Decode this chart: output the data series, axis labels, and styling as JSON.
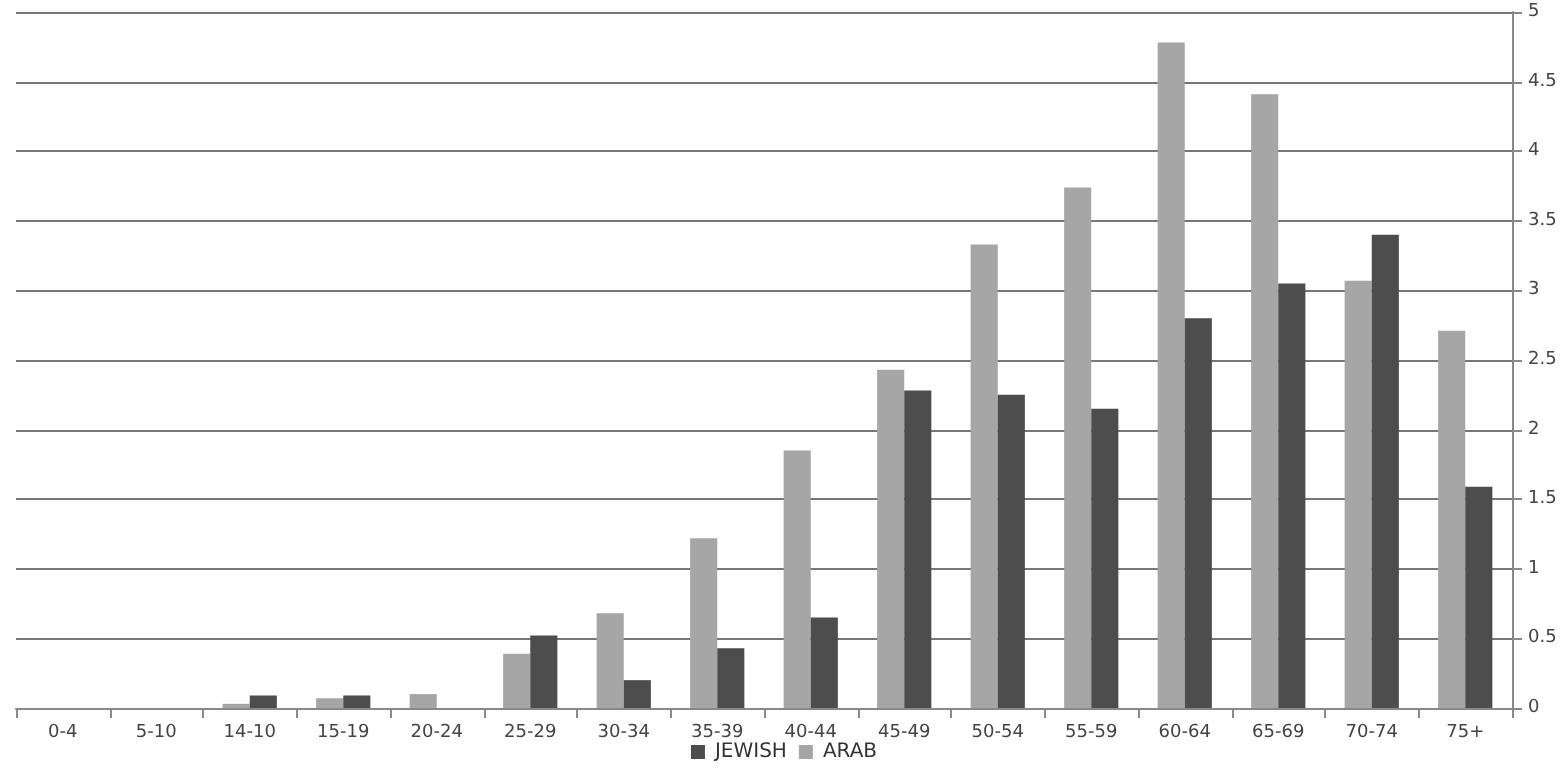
{
  "chart_data": {
    "type": "bar",
    "categories": [
      "0-4",
      "5-10",
      "14-10",
      "15-19",
      "20-24",
      "25-29",
      "30-34",
      "35-39",
      "40-44",
      "45-49",
      "50-54",
      "55-59",
      "60-64",
      "65-69",
      "70-74",
      "75+"
    ],
    "series": [
      {
        "name": "ARAB",
        "color": "#a6a6a6",
        "values": [
          0,
          0,
          0.03,
          0.07,
          0.1,
          0.39,
          0.68,
          1.22,
          1.85,
          2.43,
          3.33,
          3.74,
          4.78,
          4.41,
          3.07,
          2.71
        ]
      },
      {
        "name": "JEWISH",
        "color": "#4d4d4d",
        "values": [
          0,
          0,
          0.09,
          0.09,
          0,
          0.52,
          0.2,
          0.43,
          0.65,
          2.28,
          2.25,
          2.15,
          2.8,
          3.05,
          3.4,
          1.59
        ]
      }
    ],
    "ylim": [
      0,
      5
    ],
    "yticks": [
      0,
      0.5,
      1,
      1.5,
      2,
      2.5,
      3,
      3.5,
      4,
      4.5,
      5
    ],
    "grid": "y",
    "legend": "bottom"
  }
}
